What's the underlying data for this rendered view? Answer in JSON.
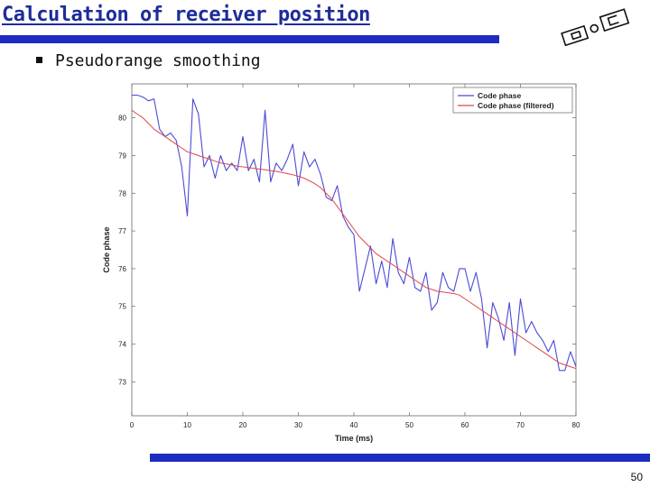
{
  "slide": {
    "title": "Calculation of receiver position",
    "bullet": "Pseudorange smoothing",
    "page_number": "50",
    "accent_color": "#1d2cc0",
    "logo_icon": "institution-logo"
  },
  "chart_data": {
    "type": "line",
    "xlabel": "Time (ms)",
    "ylabel": "Code phase",
    "xlim": [
      0,
      80
    ],
    "ylim": [
      72.1,
      80.9
    ],
    "xticks": [
      0,
      10,
      20,
      30,
      40,
      50,
      60,
      70,
      80
    ],
    "yticks": [
      73,
      74,
      75,
      76,
      77,
      78,
      79,
      80
    ],
    "grid": false,
    "legend_position": "top-right",
    "x": [
      0,
      1,
      2,
      3,
      4,
      5,
      6,
      7,
      8,
      9,
      10,
      11,
      12,
      13,
      14,
      15,
      16,
      17,
      18,
      19,
      20,
      21,
      22,
      23,
      24,
      25,
      26,
      27,
      28,
      29,
      30,
      31,
      32,
      33,
      34,
      35,
      36,
      37,
      38,
      39,
      40,
      41,
      42,
      43,
      44,
      45,
      46,
      47,
      48,
      49,
      50,
      51,
      52,
      53,
      54,
      55,
      56,
      57,
      58,
      59,
      60,
      61,
      62,
      63,
      64,
      65,
      66,
      67,
      68,
      69,
      70,
      71,
      72,
      73,
      74,
      75,
      76,
      77,
      78,
      79,
      80
    ],
    "series": [
      {
        "name": "Code phase",
        "color": "#4b4bd6",
        "values": [
          80.6,
          80.6,
          80.55,
          80.45,
          80.5,
          79.7,
          79.5,
          79.6,
          79.4,
          78.7,
          77.4,
          80.5,
          80.1,
          78.7,
          79.0,
          78.4,
          79.0,
          78.6,
          78.8,
          78.6,
          79.5,
          78.6,
          78.9,
          78.3,
          80.2,
          78.3,
          78.8,
          78.6,
          78.9,
          79.3,
          78.2,
          79.1,
          78.7,
          78.9,
          78.5,
          77.9,
          77.8,
          78.2,
          77.4,
          77.1,
          76.9,
          75.4,
          76.0,
          76.6,
          75.6,
          76.2,
          75.5,
          76.8,
          75.9,
          75.6,
          76.3,
          75.5,
          75.4,
          75.9,
          74.9,
          75.1,
          75.9,
          75.5,
          75.4,
          76.0,
          76.0,
          75.4,
          75.9,
          75.2,
          73.9,
          75.1,
          74.7,
          74.1,
          75.1,
          73.7,
          75.2,
          74.3,
          74.6,
          74.3,
          74.1,
          73.8,
          74.1,
          73.3,
          73.3,
          73.8,
          73.4
        ]
      },
      {
        "name": "Code phase (filtered)",
        "color": "#e04848",
        "values": [
          80.2,
          80.1,
          80.0,
          79.85,
          79.7,
          79.6,
          79.5,
          79.4,
          79.3,
          79.2,
          79.1,
          79.05,
          79.0,
          78.95,
          78.9,
          78.85,
          78.8,
          78.78,
          78.75,
          78.72,
          78.7,
          78.68,
          78.66,
          78.64,
          78.62,
          78.6,
          78.58,
          78.55,
          78.52,
          78.49,
          78.45,
          78.4,
          78.33,
          78.25,
          78.15,
          78.0,
          77.85,
          77.65,
          77.45,
          77.25,
          77.05,
          76.85,
          76.7,
          76.55,
          76.4,
          76.3,
          76.2,
          76.1,
          76.0,
          75.9,
          75.8,
          75.7,
          75.6,
          75.5,
          75.45,
          75.4,
          75.38,
          75.36,
          75.34,
          75.3,
          75.2,
          75.1,
          75.0,
          74.9,
          74.8,
          74.7,
          74.6,
          74.5,
          74.4,
          74.3,
          74.2,
          74.1,
          74.0,
          73.9,
          73.8,
          73.7,
          73.6,
          73.5,
          73.45,
          73.4,
          73.35
        ]
      }
    ]
  }
}
